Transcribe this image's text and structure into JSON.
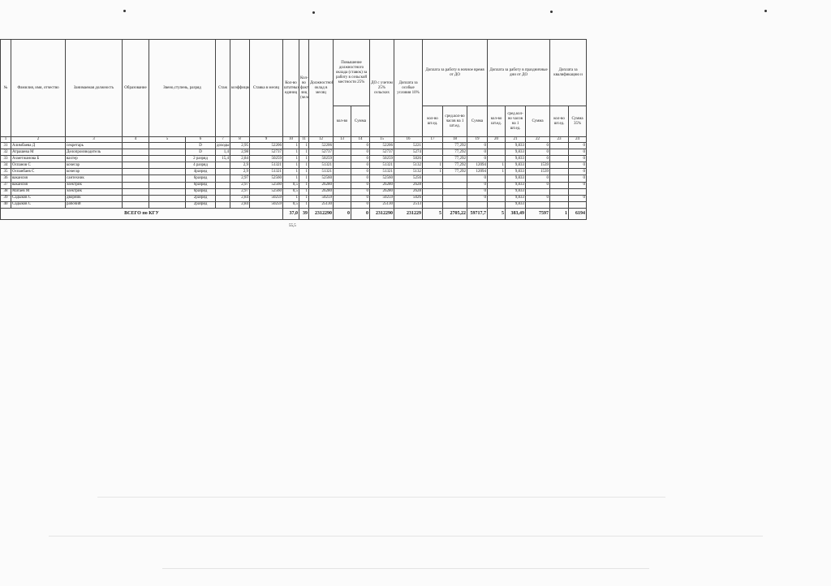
{
  "header": {
    "c1": "№",
    "c2": "Фамилия, имя, отчество",
    "c3": "Занимаемая должность",
    "c4": "Образование",
    "c5": "Звено,ступень, разряд",
    "c7": "Стаж",
    "c8": "коэффициент",
    "c9": "Ставка в месяц",
    "c10": "Кол-во штатных единиц",
    "c11": "Кол-во фактических лиц (человек)",
    "c12": "Должностной оклад в месяц",
    "c13_14": "Повышение должностного оклада (ставок) за работу в сельской местности 25%",
    "c13": "кол-во",
    "c14": "Сумма",
    "c15": "ДО с учетом 25% сельских",
    "c16": "Доплата за особые условия 10%",
    "c17_19": "Доплата за работу в ночное время от ДО",
    "c17": "кол-во шт.ед.",
    "c18": "сред.кол-во часов на 1 шт.ед.",
    "c19": "Сумма",
    "c20_22": "Доплата за работу в праздничные дни от ДО",
    "c20": "кол-во шт.ед.",
    "c21": "сред.кол-во часов на 1 шт.ед.",
    "c22": "Сумма",
    "c23_24": "Доплата за квалификацию и",
    "c23": "кол-во шт.ед.",
    "c24": "Сумма 35%"
  },
  "column_numbers": [
    "1",
    "2",
    "3",
    "4",
    "5",
    "6",
    "7",
    "8",
    "9",
    "10",
    "11",
    "12",
    "13",
    "14",
    "15",
    "16",
    "17",
    "18",
    "19",
    "20",
    "21",
    "22",
    "23",
    "24"
  ],
  "rows": [
    [
      "31",
      "Алимбаева Д",
      "секретарь",
      "",
      "",
      "D",
      "доходы",
      "2,95",
      "52206",
      "1",
      "1",
      "52206",
      "",
      "0",
      "52206",
      "5221",
      "",
      "77,292",
      "0",
      "",
      "9,833",
      "0",
      "",
      "0"
    ],
    [
      "32",
      "Атрашева М",
      "Делопроизводитель",
      "",
      "",
      "D",
      "1,4",
      "2,98",
      "52737",
      "1",
      "1",
      "52737",
      "",
      "0",
      "52737",
      "5274",
      "",
      "77,292",
      "0",
      "",
      "9,833",
      "0",
      "",
      "0"
    ],
    [
      "33",
      "Ахметжанова Б",
      "вахтер",
      "",
      "",
      "2 разряд",
      "15,4",
      "2,84",
      "50259",
      "1",
      "1",
      "50259",
      "",
      "0",
      "50259",
      "5026",
      "",
      "77,292",
      "0",
      "",
      "9,833",
      "0",
      "",
      "0"
    ],
    [
      "34",
      "Оспанов С",
      "кочегар",
      "",
      "",
      "4 разряд",
      "",
      "2,9",
      "51321",
      "1",
      "1",
      "51321",
      "",
      "0",
      "51321",
      "5132",
      "1",
      "77,292",
      "12094",
      "1",
      "9,833",
      "1539",
      "",
      "0"
    ],
    [
      "35",
      "Оспанбаев С",
      "кочегар",
      "",
      "",
      "4разряд",
      "",
      "2,9",
      "51321",
      "1",
      "1",
      "51321",
      "",
      "0",
      "51321",
      "5132",
      "1",
      "77,292",
      "12094",
      "1",
      "9,833",
      "1539",
      "",
      "0"
    ],
    [
      "36",
      "вакансия",
      "сантехник",
      "",
      "",
      "6разряд",
      "",
      "2,97",
      "52560",
      "1",
      "1",
      "52560",
      "",
      "0",
      "52560",
      "5256",
      "",
      "",
      "0",
      "",
      "9,833",
      "0",
      "",
      "0"
    ],
    [
      "37",
      "вакансия",
      "электрик",
      "",
      "",
      "6разряд",
      "",
      "2,97",
      "52560",
      "0,5",
      "1",
      "26280",
      "",
      "0",
      "26280",
      "2628",
      "",
      "",
      "0",
      "",
      "9,833",
      "0",
      "",
      "0"
    ],
    [
      "38",
      "Матаев М",
      "электрик",
      "",
      "",
      "6разряд",
      "",
      "2,97",
      "52560",
      "0,5",
      "1",
      "26280",
      "",
      "0",
      "26280",
      "2628",
      "",
      "",
      "0",
      "",
      "9,833",
      "",
      "",
      ""
    ],
    [
      "39",
      "Садыков С",
      "дворник",
      "",
      "",
      "2разряд",
      "",
      "2,84",
      "50259",
      "1",
      "1",
      "50259",
      "",
      "0",
      "50259",
      "5026",
      "",
      "",
      "0",
      "",
      "9,833",
      "0",
      "",
      "0"
    ],
    [
      "40",
      "Садыков С",
      "рабочий",
      "",
      "",
      "2разряд",
      "",
      "2,84",
      "50259",
      "0,5",
      "1",
      "25130",
      "",
      "0",
      "25130",
      "2513",
      "",
      "",
      "",
      "",
      "9,833",
      "",
      "",
      ""
    ]
  ],
  "total": {
    "label": "ВСЕГО по КГУ",
    "values": [
      "37,0",
      "39",
      "2312290",
      "0",
      "0",
      "2312290",
      "231229",
      "5",
      "2705,22",
      "59717,7",
      "5",
      "383,49",
      "7597",
      "1",
      "6194"
    ]
  },
  "note": "55,5"
}
